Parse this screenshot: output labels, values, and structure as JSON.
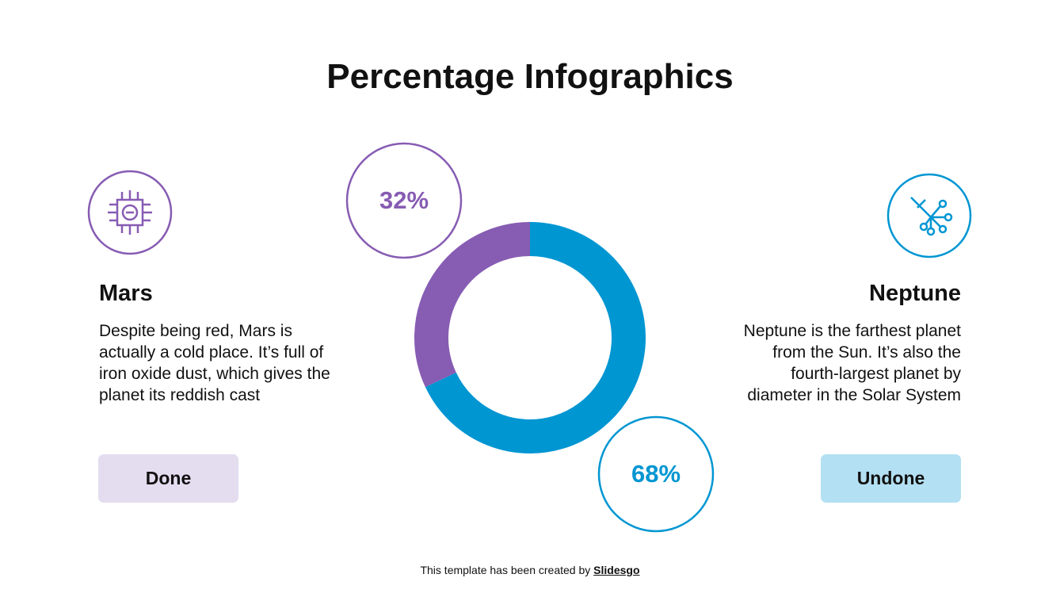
{
  "title": "Percentage Infographics",
  "chart_data": {
    "type": "donut",
    "categories": [
      "Mars",
      "Neptune"
    ],
    "values": [
      32,
      68
    ],
    "value_labels": [
      "32%",
      "68%"
    ],
    "colors": [
      "#875cb3",
      "#0096d2"
    ]
  },
  "left": {
    "text": "Despite being red, Mars is actually a cold place. It’s full of iron oxide dust, which gives the planet its reddish cast",
    "button": "Done"
  },
  "right": {
    "text": "Neptune is the farthest planet from the Sun. It’s also the fourth-largest planet by diameter in the Solar System",
    "button": "Undone"
  },
  "footer": {
    "text": "This template has been created by",
    "link": "Slidesgo"
  }
}
